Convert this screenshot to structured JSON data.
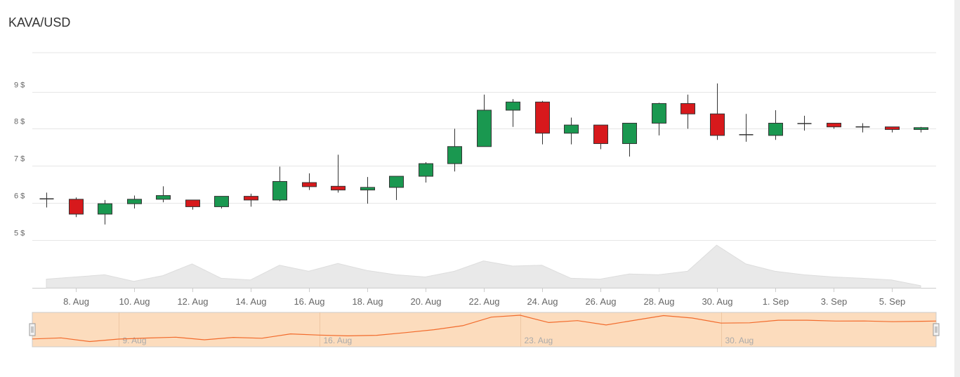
{
  "title": "KAVA/USD",
  "colors": {
    "up": "#1a9850",
    "down": "#d7191c",
    "grid": "#e6e6e6",
    "volume": "#e9e9e9",
    "navigator_bg": "#fcdcbd",
    "navigator_line": "#f26b2c",
    "text": "#666666"
  },
  "chart_data": {
    "type": "candlestick",
    "title": "KAVA/USD",
    "y_axis": {
      "ticks": [
        {
          "value": 9,
          "label": "9 $"
        },
        {
          "value": 8,
          "label": "8 $"
        },
        {
          "value": 7,
          "label": "7 $"
        },
        {
          "value": 6,
          "label": "6 $"
        },
        {
          "value": 5,
          "label": "5 $"
        }
      ],
      "range": [
        5,
        10.05
      ]
    },
    "x_axis": {
      "ticks": [
        {
          "day": 8,
          "label": "8. Aug"
        },
        {
          "day": 10,
          "label": "10. Aug"
        },
        {
          "day": 12,
          "label": "12. Aug"
        },
        {
          "day": 14,
          "label": "14. Aug"
        },
        {
          "day": 16,
          "label": "16. Aug"
        },
        {
          "day": 18,
          "label": "18. Aug"
        },
        {
          "day": 20,
          "label": "20. Aug"
        },
        {
          "day": 22,
          "label": "22. Aug"
        },
        {
          "day": 24,
          "label": "24. Aug"
        },
        {
          "day": 26,
          "label": "26. Aug"
        },
        {
          "day": 28,
          "label": "28. Aug"
        },
        {
          "day": 30,
          "label": "30. Aug"
        },
        {
          "day": 32,
          "label": "1. Sep"
        },
        {
          "day": 34,
          "label": "3. Sep"
        },
        {
          "day": 36,
          "label": "5. Sep"
        }
      ]
    },
    "candles": [
      {
        "day": 7,
        "o": 6.12,
        "h": 6.28,
        "l": 5.88,
        "c": 6.12
      },
      {
        "day": 8,
        "o": 6.1,
        "h": 6.15,
        "l": 5.62,
        "c": 5.7
      },
      {
        "day": 9,
        "o": 5.7,
        "h": 6.08,
        "l": 5.42,
        "c": 5.98
      },
      {
        "day": 10,
        "o": 5.98,
        "h": 6.2,
        "l": 5.85,
        "c": 6.1
      },
      {
        "day": 11,
        "o": 6.1,
        "h": 6.45,
        "l": 6.02,
        "c": 6.2
      },
      {
        "day": 12,
        "o": 6.08,
        "h": 6.08,
        "l": 5.82,
        "c": 5.9
      },
      {
        "day": 13,
        "o": 5.9,
        "h": 6.18,
        "l": 5.85,
        "c": 6.18
      },
      {
        "day": 14,
        "o": 6.18,
        "h": 6.25,
        "l": 5.9,
        "c": 6.08
      },
      {
        "day": 15,
        "o": 6.08,
        "h": 6.98,
        "l": 6.05,
        "c": 6.58
      },
      {
        "day": 16,
        "o": 6.55,
        "h": 6.8,
        "l": 6.35,
        "c": 6.44
      },
      {
        "day": 17,
        "o": 6.45,
        "h": 7.3,
        "l": 6.28,
        "c": 6.35
      },
      {
        "day": 18,
        "o": 6.35,
        "h": 6.7,
        "l": 5.98,
        "c": 6.42
      },
      {
        "day": 19,
        "o": 6.42,
        "h": 6.7,
        "l": 6.08,
        "c": 6.72
      },
      {
        "day": 20,
        "o": 6.72,
        "h": 7.1,
        "l": 6.55,
        "c": 7.06
      },
      {
        "day": 21,
        "o": 7.06,
        "h": 8.0,
        "l": 6.85,
        "c": 7.52
      },
      {
        "day": 22,
        "o": 7.52,
        "h": 8.92,
        "l": 7.52,
        "c": 8.5
      },
      {
        "day": 23,
        "o": 8.5,
        "h": 8.8,
        "l": 8.05,
        "c": 8.72
      },
      {
        "day": 24,
        "o": 8.72,
        "h": 8.75,
        "l": 7.58,
        "c": 7.88
      },
      {
        "day": 25,
        "o": 7.88,
        "h": 8.3,
        "l": 7.58,
        "c": 8.1
      },
      {
        "day": 26,
        "o": 8.1,
        "h": 8.1,
        "l": 7.45,
        "c": 7.6
      },
      {
        "day": 27,
        "o": 7.6,
        "h": 8.15,
        "l": 7.25,
        "c": 8.15
      },
      {
        "day": 28,
        "o": 8.15,
        "h": 8.7,
        "l": 7.82,
        "c": 8.68
      },
      {
        "day": 29,
        "o": 8.68,
        "h": 8.92,
        "l": 8.0,
        "c": 8.4
      },
      {
        "day": 30,
        "o": 8.4,
        "h": 9.22,
        "l": 7.7,
        "c": 7.82
      },
      {
        "day": 31,
        "o": 7.82,
        "h": 8.4,
        "l": 7.65,
        "c": 7.85
      },
      {
        "day": 32,
        "o": 7.82,
        "h": 8.5,
        "l": 7.7,
        "c": 8.15
      },
      {
        "day": 33,
        "o": 8.15,
        "h": 8.35,
        "l": 7.95,
        "c": 8.15
      },
      {
        "day": 34,
        "o": 8.15,
        "h": 8.15,
        "l": 8.0,
        "c": 8.05
      },
      {
        "day": 35,
        "o": 8.06,
        "h": 8.15,
        "l": 7.9,
        "c": 8.06
      },
      {
        "day": 36,
        "o": 8.05,
        "h": 8.05,
        "l": 7.9,
        "c": 7.98
      },
      {
        "day": 37,
        "o": 7.98,
        "h": 8.05,
        "l": 7.9,
        "c": 8.03
      }
    ],
    "volume_relative": [
      0.2,
      0.25,
      0.3,
      0.15,
      0.28,
      0.55,
      0.22,
      0.18,
      0.52,
      0.38,
      0.56,
      0.4,
      0.3,
      0.25,
      0.38,
      0.62,
      0.5,
      0.52,
      0.22,
      0.2,
      0.32,
      0.3,
      0.38,
      0.98,
      0.55,
      0.38,
      0.3,
      0.25,
      0.22,
      0.18,
      0.05
    ],
    "navigator": {
      "labels": [
        {
          "day": 9,
          "label": "9. Aug"
        },
        {
          "day": 16,
          "label": "16. Aug"
        },
        {
          "day": 23,
          "label": "23. Aug"
        },
        {
          "day": 30,
          "label": "30. Aug"
        }
      ]
    }
  }
}
